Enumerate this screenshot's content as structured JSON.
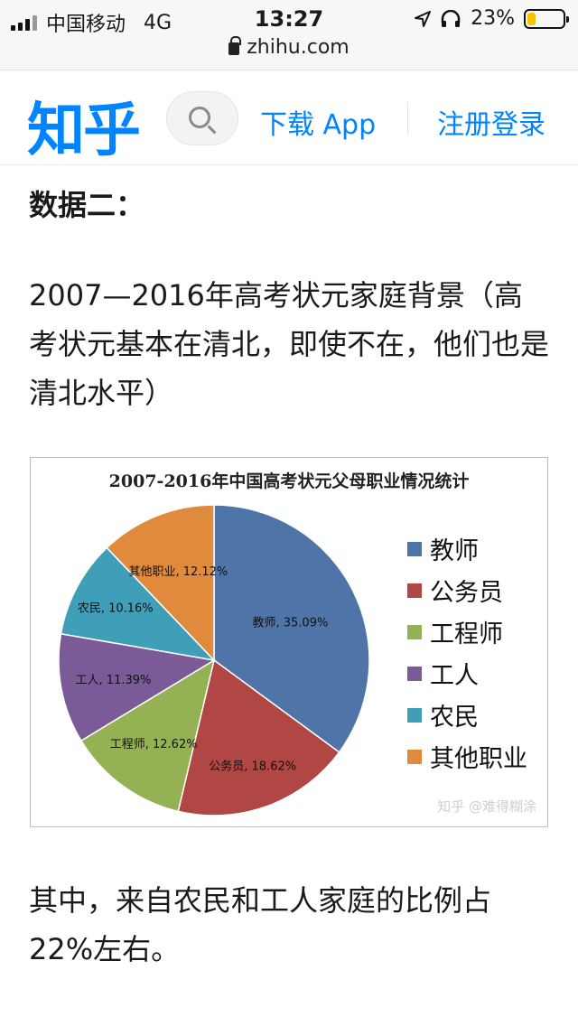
{
  "status_bar": {
    "carrier": "中国移动",
    "network": "4G",
    "time": "13:27",
    "battery_percent": "23%",
    "battery_level": 0.23
  },
  "url_bar": {
    "domain": "zhihu.com"
  },
  "header": {
    "logo": "知乎",
    "download_label": "下载 App",
    "register_label": "注册登录"
  },
  "article": {
    "heading": "数据二：",
    "paragraph1": "2007—2016年高考状元家庭背景（高考状元基本在清北，即使不在，他们也是清北水平）",
    "paragraph2": "其中，来自农民和工人家庭的比例占22%左右。"
  },
  "chart_data": {
    "type": "pie",
    "title": "2007-2016年中国高考状元父母职业情况统计",
    "categories": [
      "教师",
      "公务员",
      "工程师",
      "工人",
      "农民",
      "其他职业"
    ],
    "values": [
      35.09,
      18.62,
      12.62,
      11.39,
      10.16,
      12.12
    ],
    "data_labels": [
      "教师, 35.09%",
      "公务员, 18.62%",
      "工程师, 12.62%",
      "工人, 11.39%",
      "农民, 10.16%",
      "其他职业, 12.12%"
    ],
    "colors": [
      "#4f75a8",
      "#b04745",
      "#94b253",
      "#7a5a97",
      "#3f9fb8",
      "#e08a3e"
    ],
    "legend_position": "right",
    "watermark": "知乎 @难得糊涂"
  }
}
